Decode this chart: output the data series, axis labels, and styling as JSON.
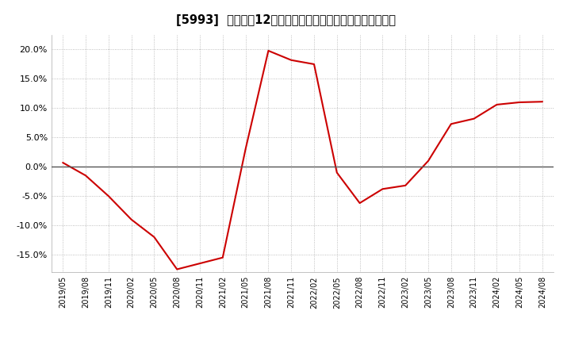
{
  "title": "[5993]  売上高の12か月移動合計の対前年同期増減率の推移",
  "line_color": "#cc0000",
  "background_color": "#ffffff",
  "plot_bg_color": "#ffffff",
  "grid_color": "#999999",
  "ylim": [
    -0.18,
    0.225
  ],
  "yticks": [
    -0.15,
    -0.1,
    -0.05,
    0.0,
    0.05,
    0.1,
    0.15,
    0.2
  ],
  "dates": [
    "2019/05",
    "2019/08",
    "2019/11",
    "2020/02",
    "2020/05",
    "2020/08",
    "2020/11",
    "2021/02",
    "2021/05",
    "2021/08",
    "2021/11",
    "2022/02",
    "2022/05",
    "2022/08",
    "2022/11",
    "2023/02",
    "2023/05",
    "2023/08",
    "2023/11",
    "2024/02",
    "2024/05",
    "2024/08"
  ],
  "values": [
    0.007,
    -0.015,
    -0.05,
    -0.09,
    -0.12,
    -0.175,
    -0.165,
    -0.155,
    0.03,
    0.198,
    0.182,
    0.175,
    -0.01,
    -0.062,
    -0.038,
    -0.032,
    0.01,
    0.073,
    0.082,
    0.106,
    0.11,
    0.111
  ]
}
